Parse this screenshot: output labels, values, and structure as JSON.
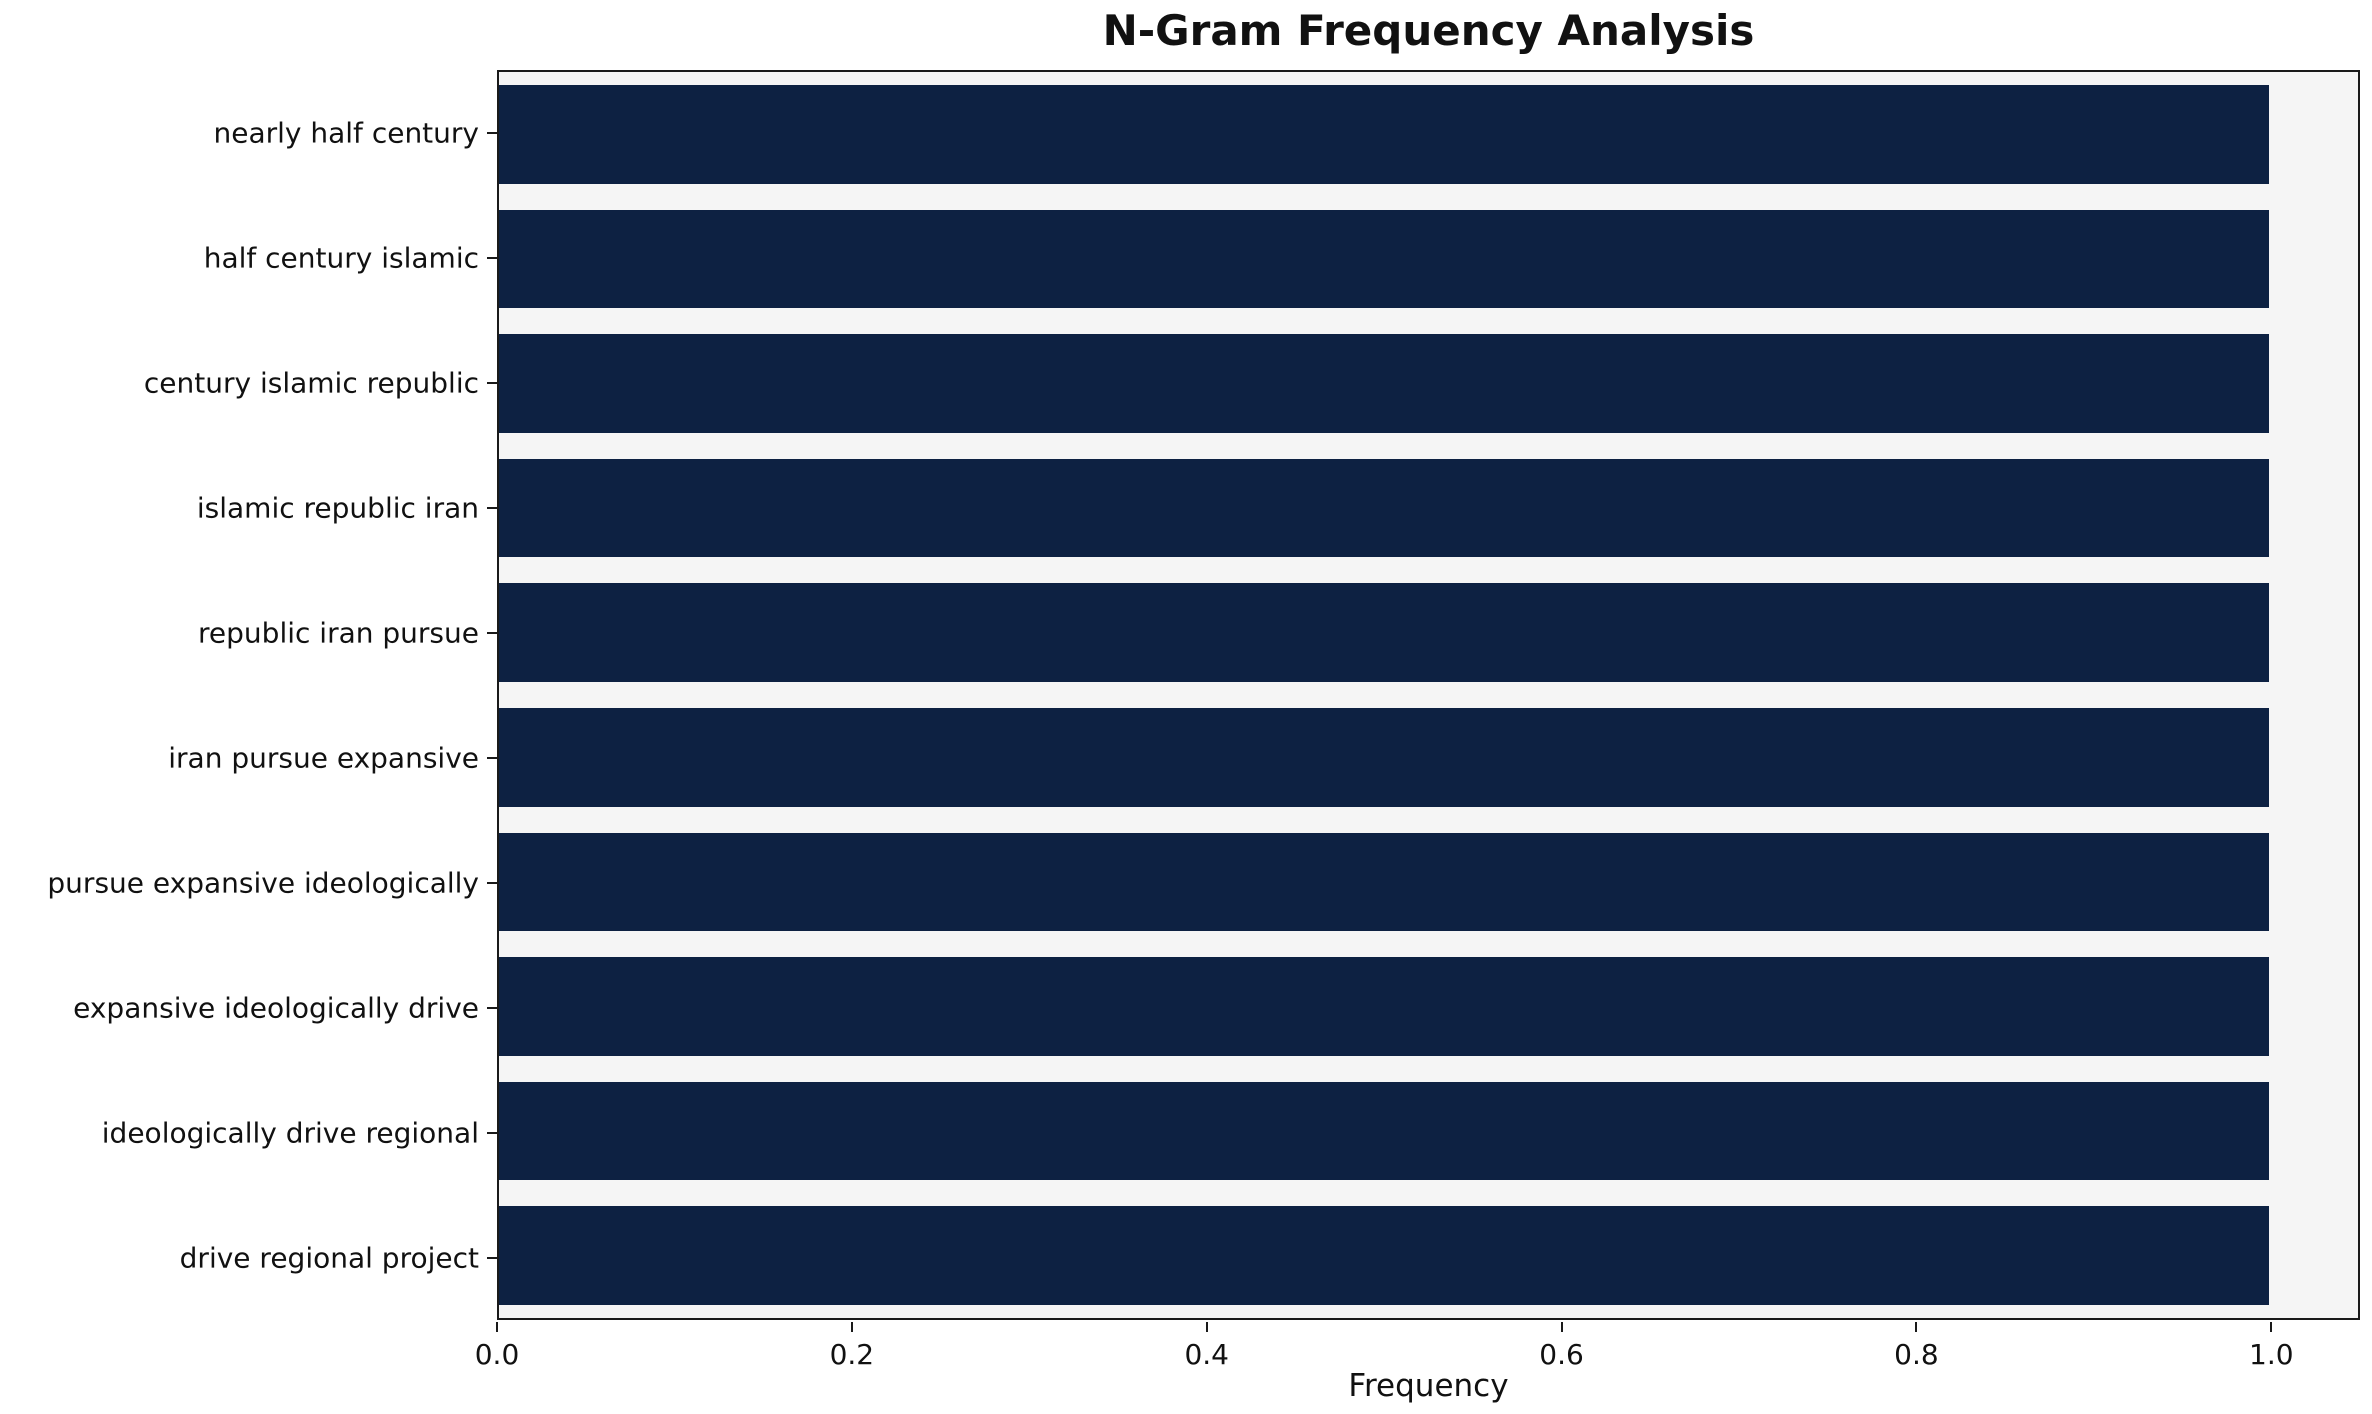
{
  "chart_data": {
    "type": "bar",
    "orientation": "horizontal",
    "title": "N-Gram Frequency Analysis",
    "xlabel": "Frequency",
    "ylabel": "",
    "categories": [
      "nearly half century",
      "half century islamic",
      "century islamic republic",
      "islamic republic iran",
      "republic iran pursue",
      "iran pursue expansive",
      "pursue expansive ideologically",
      "expansive ideologically drive",
      "ideologically drive regional",
      "drive regional project"
    ],
    "values": [
      1.0,
      1.0,
      1.0,
      1.0,
      1.0,
      1.0,
      1.0,
      1.0,
      1.0,
      1.0
    ],
    "xlim": [
      0,
      1.05
    ],
    "xticks": [
      0.0,
      0.2,
      0.4,
      0.6,
      0.8,
      1.0
    ],
    "grid": false,
    "legend": null,
    "bar_color": "#0d2142",
    "plot_bg": "#f5f5f5",
    "axis_color": "#1a1a1a"
  }
}
